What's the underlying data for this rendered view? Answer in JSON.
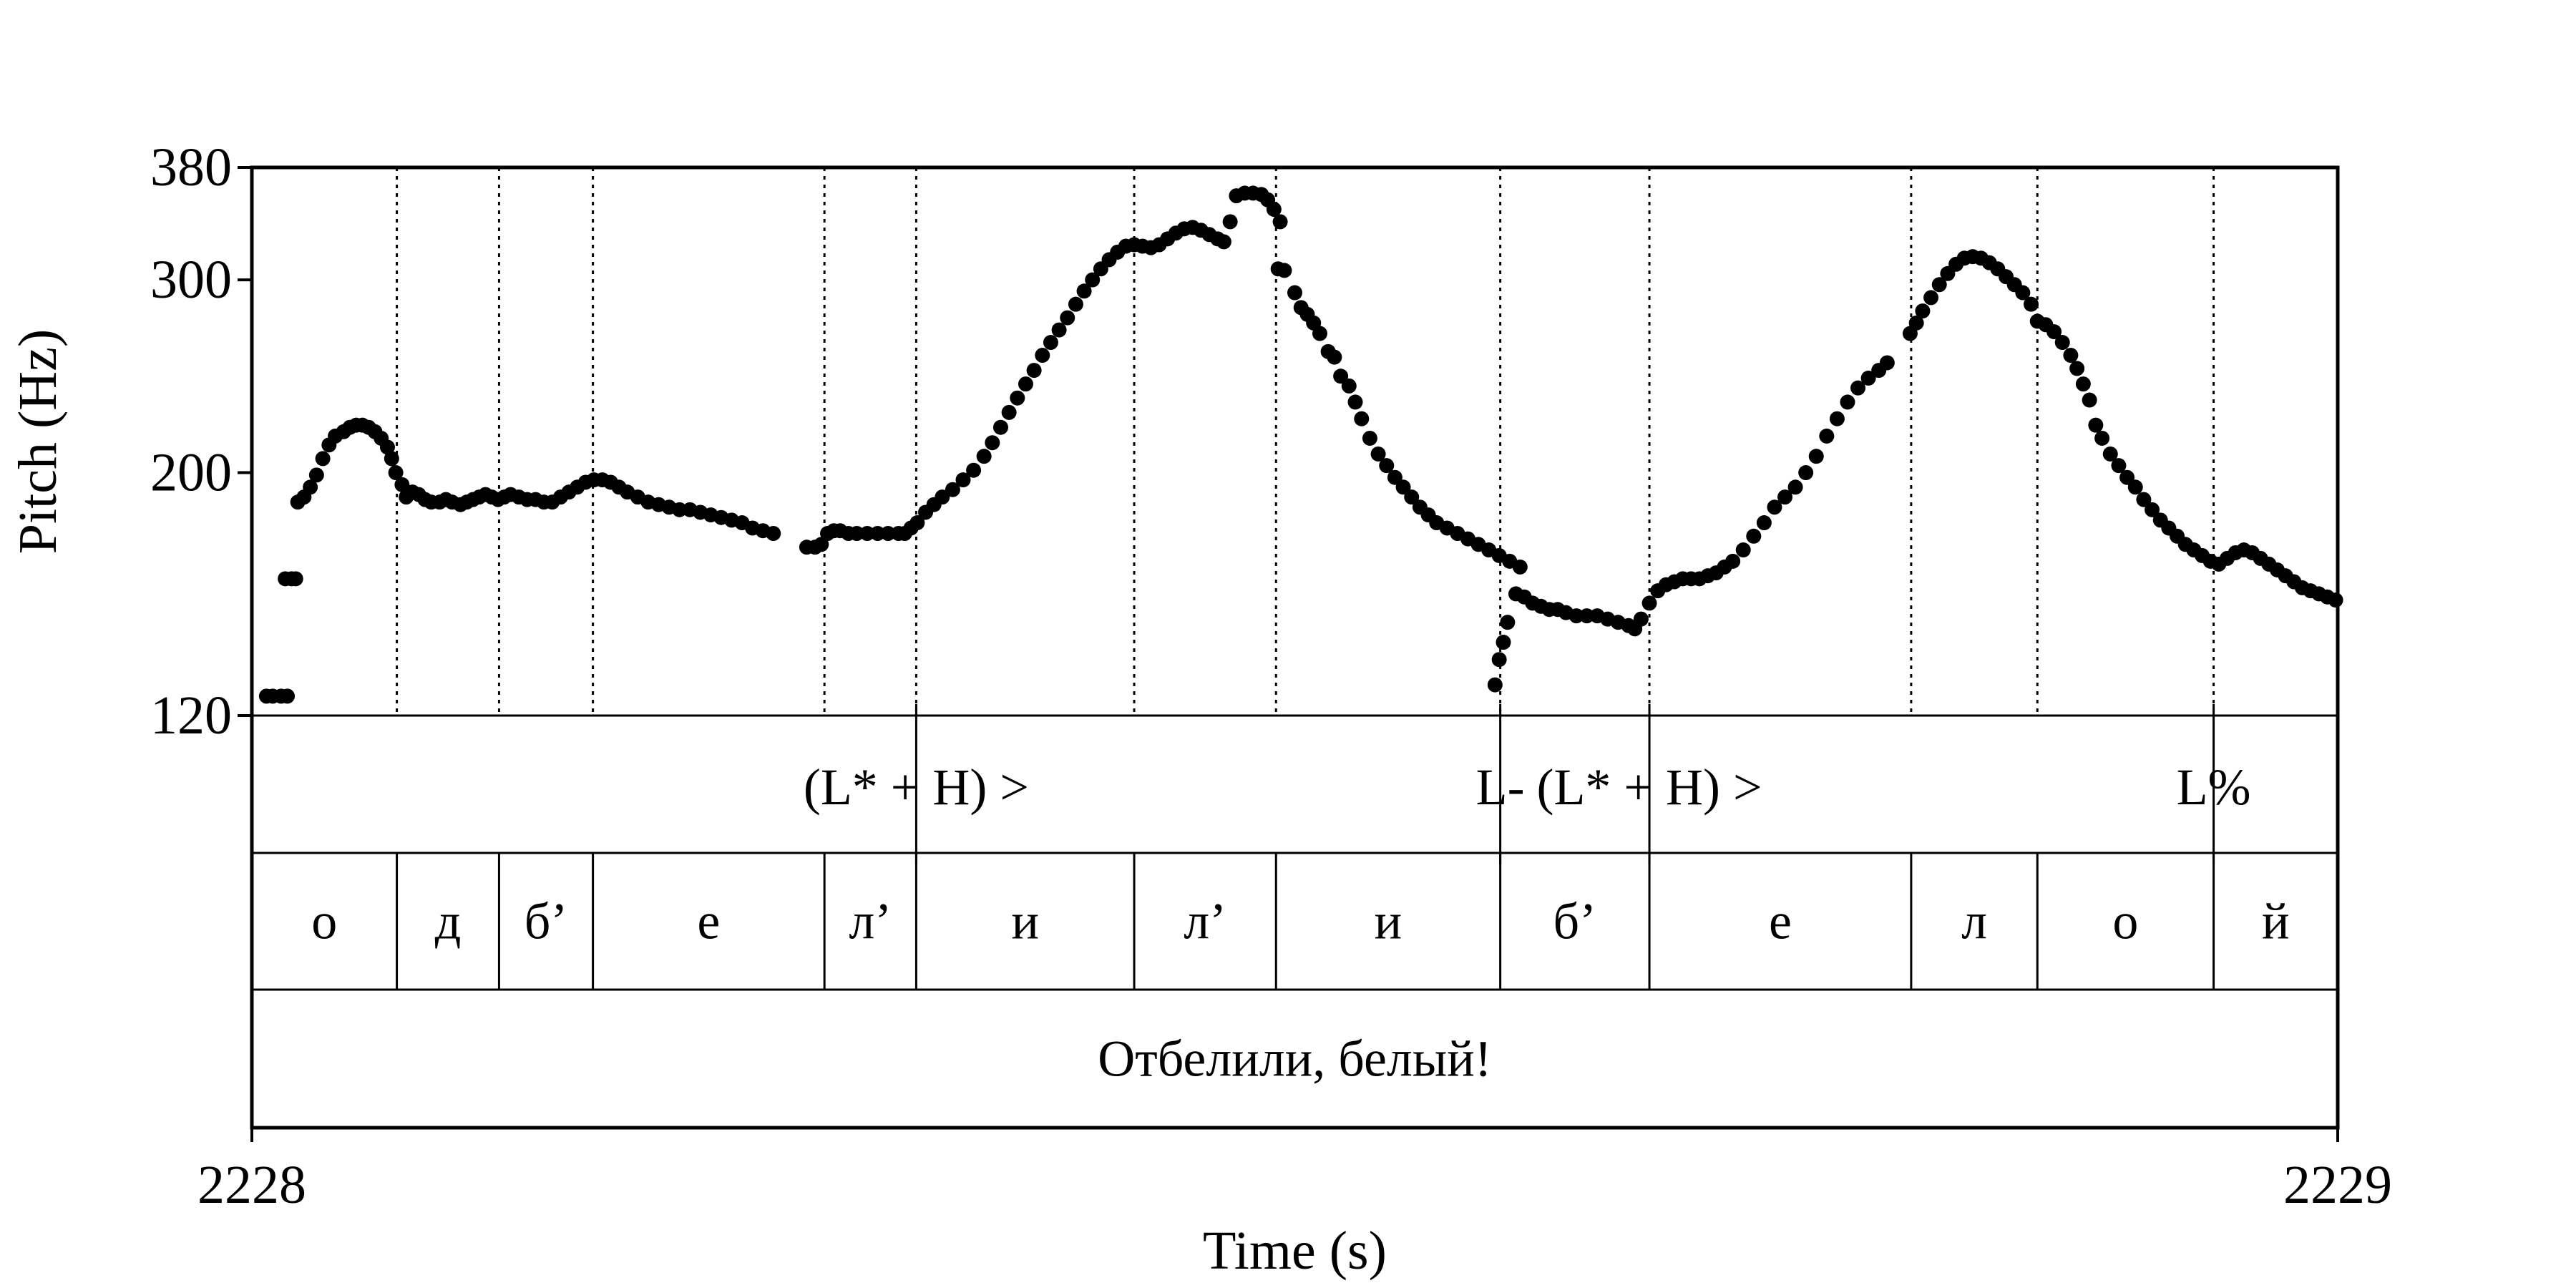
{
  "chart_data": {
    "type": "scatter",
    "xlabel": "Time (s)",
    "ylabel": "Pitch (Hz)",
    "xlim": [
      2228,
      2229
    ],
    "ylim": [
      120,
      380
    ],
    "x_ticks": [
      "2228",
      "2229"
    ],
    "y_ticks": [
      {
        "value": 380,
        "label": "380"
      },
      {
        "value": 300,
        "label": "300"
      },
      {
        "value": 200,
        "label": "200"
      },
      {
        "value": 120,
        "label": "120"
      }
    ],
    "pitch_points": [
      [
        0.007,
        125
      ],
      [
        0.01,
        125
      ],
      [
        0.014,
        125
      ],
      [
        0.017,
        125
      ],
      [
        0.016,
        160
      ],
      [
        0.019,
        160
      ],
      [
        0.021,
        160
      ],
      [
        0.022,
        188
      ],
      [
        0.025,
        190
      ],
      [
        0.028,
        194
      ],
      [
        0.031,
        199
      ],
      [
        0.034,
        206
      ],
      [
        0.037,
        212
      ],
      [
        0.04,
        216
      ],
      [
        0.044,
        218
      ],
      [
        0.047,
        220
      ],
      [
        0.05,
        221
      ],
      [
        0.053,
        221
      ],
      [
        0.056,
        220
      ],
      [
        0.059,
        218
      ],
      [
        0.062,
        215
      ],
      [
        0.065,
        211
      ],
      [
        0.067,
        206
      ],
      [
        0.069,
        200
      ],
      [
        0.072,
        195
      ],
      [
        0.074,
        190
      ],
      [
        0.077,
        192
      ],
      [
        0.08,
        191
      ],
      [
        0.083,
        189
      ],
      [
        0.086,
        188
      ],
      [
        0.09,
        188
      ],
      [
        0.093,
        189
      ],
      [
        0.096,
        188
      ],
      [
        0.1,
        187
      ],
      [
        0.103,
        188
      ],
      [
        0.106,
        189
      ],
      [
        0.109,
        190
      ],
      [
        0.112,
        191
      ],
      [
        0.115,
        190
      ],
      [
        0.118,
        189
      ],
      [
        0.121,
        190
      ],
      [
        0.124,
        191
      ],
      [
        0.128,
        190
      ],
      [
        0.132,
        189
      ],
      [
        0.136,
        189
      ],
      [
        0.14,
        188
      ],
      [
        0.144,
        188
      ],
      [
        0.148,
        190
      ],
      [
        0.152,
        192
      ],
      [
        0.156,
        194
      ],
      [
        0.16,
        196
      ],
      [
        0.164,
        197
      ],
      [
        0.168,
        197
      ],
      [
        0.172,
        196
      ],
      [
        0.176,
        194
      ],
      [
        0.18,
        192
      ],
      [
        0.185,
        190
      ],
      [
        0.19,
        188
      ],
      [
        0.195,
        187
      ],
      [
        0.2,
        186
      ],
      [
        0.205,
        185
      ],
      [
        0.21,
        185
      ],
      [
        0.215,
        184
      ],
      [
        0.22,
        183
      ],
      [
        0.225,
        182
      ],
      [
        0.23,
        181
      ],
      [
        0.235,
        180
      ],
      [
        0.24,
        178
      ],
      [
        0.245,
        177
      ],
      [
        0.25,
        176
      ],
      [
        0.266,
        171
      ],
      [
        0.27,
        171
      ],
      [
        0.273,
        172
      ],
      [
        0.276,
        176
      ],
      [
        0.279,
        177
      ],
      [
        0.282,
        177
      ],
      [
        0.286,
        176
      ],
      [
        0.29,
        176
      ],
      [
        0.295,
        176
      ],
      [
        0.3,
        176
      ],
      [
        0.305,
        176
      ],
      [
        0.31,
        176
      ],
      [
        0.313,
        176
      ],
      [
        0.316,
        178
      ],
      [
        0.319,
        180
      ],
      [
        0.323,
        184
      ],
      [
        0.327,
        187
      ],
      [
        0.331,
        190
      ],
      [
        0.336,
        193
      ],
      [
        0.341,
        197
      ],
      [
        0.346,
        201
      ],
      [
        0.351,
        207
      ],
      [
        0.355,
        213
      ],
      [
        0.359,
        220
      ],
      [
        0.363,
        227
      ],
      [
        0.367,
        234
      ],
      [
        0.371,
        241
      ],
      [
        0.375,
        248
      ],
      [
        0.379,
        256
      ],
      [
        0.383,
        263
      ],
      [
        0.387,
        270
      ],
      [
        0.391,
        277
      ],
      [
        0.395,
        285
      ],
      [
        0.399,
        293
      ],
      [
        0.403,
        300
      ],
      [
        0.407,
        307
      ],
      [
        0.411,
        313
      ],
      [
        0.415,
        318
      ],
      [
        0.419,
        322
      ],
      [
        0.423,
        323
      ],
      [
        0.427,
        322
      ],
      [
        0.431,
        321
      ],
      [
        0.435,
        323
      ],
      [
        0.439,
        327
      ],
      [
        0.443,
        331
      ],
      [
        0.447,
        334
      ],
      [
        0.451,
        335
      ],
      [
        0.455,
        333
      ],
      [
        0.459,
        330
      ],
      [
        0.463,
        327
      ],
      [
        0.466,
        325
      ],
      [
        0.469,
        339
      ],
      [
        0.472,
        358
      ],
      [
        0.476,
        360
      ],
      [
        0.48,
        360
      ],
      [
        0.484,
        359
      ],
      [
        0.487,
        355
      ],
      [
        0.49,
        348
      ],
      [
        0.493,
        339
      ],
      [
        0.492,
        307
      ],
      [
        0.495,
        306
      ],
      [
        0.5,
        292
      ],
      [
        0.503,
        283
      ],
      [
        0.506,
        279
      ],
      [
        0.509,
        274
      ],
      [
        0.512,
        268
      ],
      [
        0.516,
        258
      ],
      [
        0.519,
        255
      ],
      [
        0.522,
        245
      ],
      [
        0.526,
        240
      ],
      [
        0.529,
        232
      ],
      [
        0.532,
        224
      ],
      [
        0.536,
        215
      ],
      [
        0.54,
        208
      ],
      [
        0.544,
        203
      ],
      [
        0.548,
        198
      ],
      [
        0.552,
        194
      ],
      [
        0.556,
        190
      ],
      [
        0.56,
        186
      ],
      [
        0.564,
        183
      ],
      [
        0.568,
        180
      ],
      [
        0.573,
        178
      ],
      [
        0.578,
        176
      ],
      [
        0.583,
        174
      ],
      [
        0.588,
        172
      ],
      [
        0.593,
        170
      ],
      [
        0.598,
        168
      ],
      [
        0.603,
        166
      ],
      [
        0.608,
        164
      ],
      [
        0.596,
        128
      ],
      [
        0.598,
        135
      ],
      [
        0.6,
        140
      ],
      [
        0.602,
        146
      ],
      [
        0.606,
        155
      ],
      [
        0.61,
        154
      ],
      [
        0.614,
        152
      ],
      [
        0.618,
        151
      ],
      [
        0.622,
        150
      ],
      [
        0.626,
        150
      ],
      [
        0.63,
        149
      ],
      [
        0.635,
        148
      ],
      [
        0.64,
        148
      ],
      [
        0.645,
        148
      ],
      [
        0.65,
        147
      ],
      [
        0.655,
        146
      ],
      [
        0.66,
        145
      ],
      [
        0.663,
        144
      ],
      [
        0.666,
        147
      ],
      [
        0.67,
        152
      ],
      [
        0.674,
        156
      ],
      [
        0.678,
        158
      ],
      [
        0.682,
        159
      ],
      [
        0.686,
        160
      ],
      [
        0.69,
        160
      ],
      [
        0.694,
        160
      ],
      [
        0.698,
        161
      ],
      [
        0.702,
        162
      ],
      [
        0.706,
        164
      ],
      [
        0.71,
        166
      ],
      [
        0.715,
        170
      ],
      [
        0.72,
        175
      ],
      [
        0.725,
        180
      ],
      [
        0.73,
        186
      ],
      [
        0.735,
        190
      ],
      [
        0.74,
        194
      ],
      [
        0.745,
        200
      ],
      [
        0.75,
        207
      ],
      [
        0.755,
        216
      ],
      [
        0.76,
        224
      ],
      [
        0.765,
        232
      ],
      [
        0.77,
        239
      ],
      [
        0.775,
        244
      ],
      [
        0.78,
        248
      ],
      [
        0.784,
        252
      ],
      [
        0.795,
        268
      ],
      [
        0.798,
        274
      ],
      [
        0.801,
        281
      ],
      [
        0.805,
        289
      ],
      [
        0.809,
        297
      ],
      [
        0.813,
        304
      ],
      [
        0.817,
        310
      ],
      [
        0.821,
        314
      ],
      [
        0.825,
        315
      ],
      [
        0.829,
        314
      ],
      [
        0.833,
        311
      ],
      [
        0.837,
        307
      ],
      [
        0.841,
        302
      ],
      [
        0.845,
        297
      ],
      [
        0.849,
        292
      ],
      [
        0.853,
        285
      ],
      [
        0.856,
        275
      ],
      [
        0.86,
        273
      ],
      [
        0.864,
        269
      ],
      [
        0.868,
        263
      ],
      [
        0.872,
        256
      ],
      [
        0.875,
        249
      ],
      [
        0.878,
        241
      ],
      [
        0.881,
        233
      ],
      [
        0.884,
        221
      ],
      [
        0.887,
        215
      ],
      [
        0.891,
        208
      ],
      [
        0.895,
        203
      ],
      [
        0.899,
        198
      ],
      [
        0.903,
        194
      ],
      [
        0.907,
        189
      ],
      [
        0.911,
        185
      ],
      [
        0.915,
        181
      ],
      [
        0.919,
        178
      ],
      [
        0.923,
        175
      ],
      [
        0.927,
        172
      ],
      [
        0.931,
        170
      ],
      [
        0.935,
        168
      ],
      [
        0.939,
        166
      ],
      [
        0.943,
        165
      ],
      [
        0.947,
        167
      ],
      [
        0.951,
        169
      ],
      [
        0.955,
        170
      ],
      [
        0.959,
        169
      ],
      [
        0.963,
        167
      ],
      [
        0.967,
        165
      ],
      [
        0.971,
        163
      ],
      [
        0.975,
        161
      ],
      [
        0.979,
        159
      ],
      [
        0.983,
        157
      ],
      [
        0.987,
        156
      ],
      [
        0.991,
        155
      ],
      [
        0.995,
        154
      ],
      [
        0.999,
        153
      ]
    ],
    "boundaries": [
      0.0695,
      0.1185,
      0.1635,
      0.2745,
      0.3185,
      0.423,
      0.491,
      0.5985,
      0.67,
      0.7955,
      0.856,
      0.9405
    ],
    "tones": [
      {
        "x": 0.3185,
        "label": "(L* + H) >"
      },
      {
        "x": 0.5985,
        "label": "L-"
      },
      {
        "x": 0.67,
        "label": "(L* + H) >"
      },
      {
        "x": 0.9405,
        "label": "L%"
      }
    ],
    "segments": [
      "о",
      "д",
      "б’",
      "е",
      "л’",
      "и",
      "л’",
      "и",
      "б’",
      "е",
      "л",
      "о",
      "й"
    ],
    "sentence": "Отбелили, белый!"
  }
}
